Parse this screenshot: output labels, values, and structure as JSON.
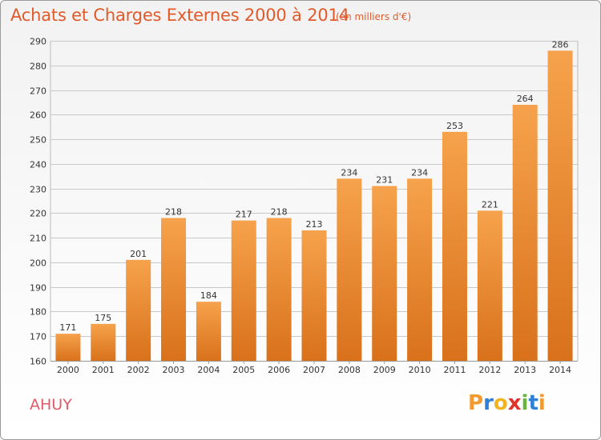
{
  "title": "Achats et Charges Externes 2000 à 2014",
  "subtitle": "(en milliers d'€)",
  "commune": "AHUY",
  "brand": {
    "letters": [
      "P",
      "r",
      "o",
      "x",
      "i",
      "t",
      "i"
    ],
    "colors": [
      "#f29a2e",
      "#2e7fd6",
      "#f2b41e",
      "#e0332a",
      "#6cb33f",
      "#2e7fd6",
      "#f29a2e"
    ]
  },
  "colors": {
    "bar_light": "#f6a24c",
    "bar_dark": "#d9711b",
    "grid": "#c8c8c8",
    "title": "#e05a2a",
    "text": "#333333"
  },
  "chart_data": {
    "type": "bar",
    "title": "Achats et Charges Externes 2000 à 2014",
    "subtitle": "(en milliers d'€)",
    "categories": [
      "2000",
      "2001",
      "2002",
      "2003",
      "2004",
      "2005",
      "2006",
      "2007",
      "2008",
      "2009",
      "2010",
      "2011",
      "2012",
      "2013",
      "2014"
    ],
    "values": [
      171,
      175,
      201,
      218,
      184,
      217,
      218,
      213,
      234,
      231,
      234,
      253,
      221,
      264,
      286
    ],
    "ylim": [
      160,
      290
    ],
    "yticks": [
      160,
      170,
      180,
      190,
      200,
      210,
      220,
      230,
      240,
      250,
      260,
      270,
      280,
      290
    ],
    "grid": true,
    "data_labels": true
  }
}
